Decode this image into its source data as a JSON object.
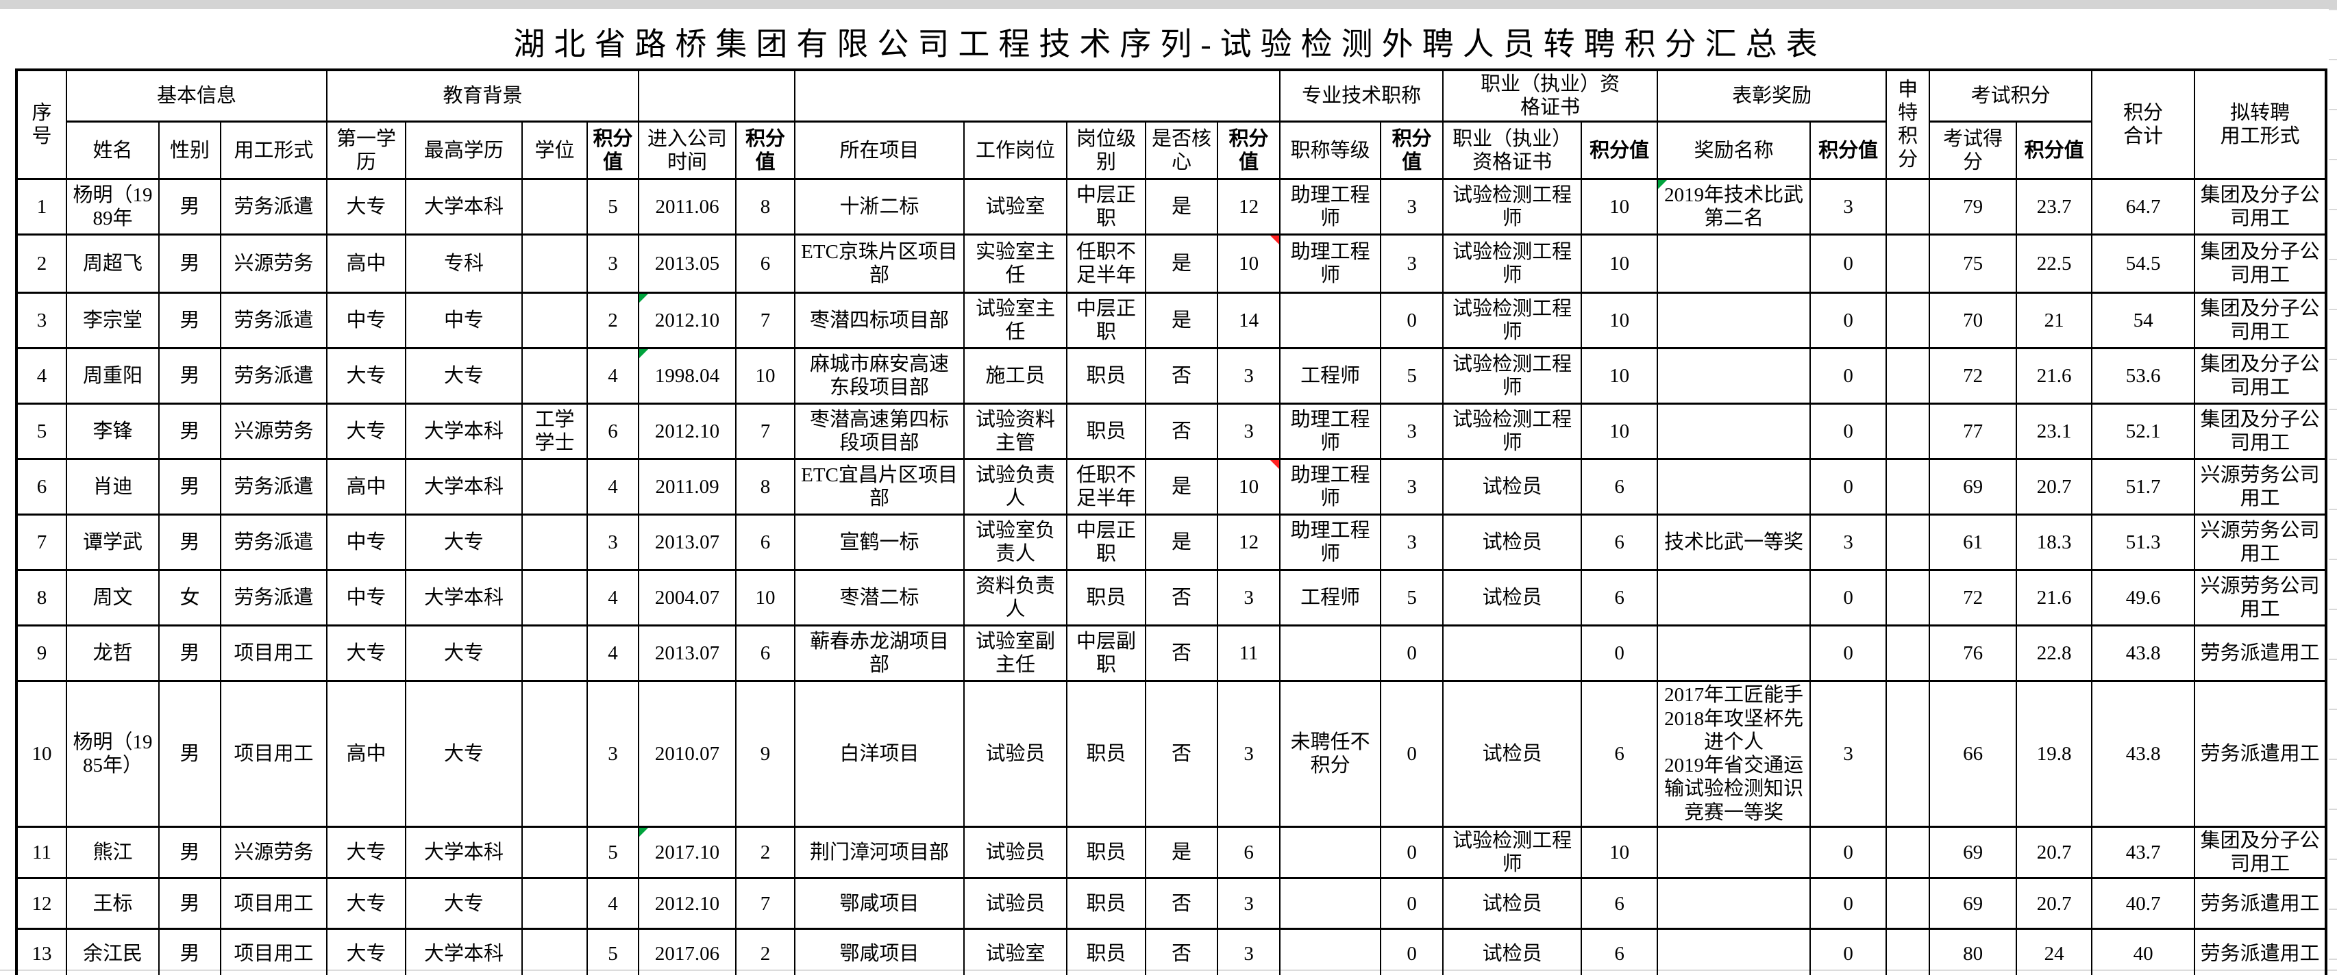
{
  "title": "湖北省路桥集团有限公司工程技术序列-试验检测外聘人员转聘积分汇总表",
  "colors": {
    "comment_green": "#00a33d",
    "comment_red": "#ff2222",
    "top_bar": "#d4d4d4",
    "gridline": "#d9d9d9"
  },
  "header": {
    "index": "序号",
    "groups": {
      "basic": "基本信息",
      "education": "教育背景",
      "entry": "",
      "post": "",
      "pro_title": "专业技术职称",
      "qualification": "职业（执业）资\n格证书",
      "award": "表彰奖励",
      "special": "申特积分",
      "exam": "考试积分",
      "total": "积分\n合计",
      "proposed": "拟转聘\n用工形式"
    },
    "sub": {
      "name": "姓名",
      "gender": "性别",
      "employment": "用工形式",
      "first_degree": "第一学历",
      "highest_degree": "最高学历",
      "degree": "学位",
      "score_edu": "积分值",
      "entry_date": "进入公司时间",
      "score_entry": "积分值",
      "project": "所在项目",
      "post": "工作岗位",
      "post_level": "岗位级别",
      "is_core": "是否核心",
      "score_post": "积分值",
      "title_level": "职称等级",
      "score_title": "积分值",
      "certificate": "职业（执业）资格证书",
      "score_cert": "积分值",
      "award_name": "奖励名称",
      "score_award": "积分值",
      "exam_score": "考试得分",
      "score_exam": "积分值"
    }
  },
  "rows": [
    {
      "cells": [
        "1",
        "杨明（1989年",
        "男",
        "劳务派遣",
        "大专",
        "大学本科",
        "",
        "5",
        "2011.06",
        "8",
        "十淅二标",
        "试验室",
        "中层正职",
        "是",
        "12",
        "助理工程师",
        "3",
        "试验检测工程师",
        "10",
        "2019年技术比武第二名",
        "3",
        "",
        "79",
        "23.7",
        "64.7",
        "集团及分子公司用工"
      ],
      "markers": {
        "19": "green"
      }
    },
    {
      "cells": [
        "2",
        "周超飞",
        "男",
        "兴源劳务",
        "高中",
        "专科",
        "",
        "3",
        "2013.05",
        "6",
        "ETC京珠片区项目部",
        "实验室主任",
        "任职不足半年",
        "是",
        "10",
        "助理工程师",
        "3",
        "试验检测工程师",
        "10",
        "",
        "0",
        "",
        "75",
        "22.5",
        "54.5",
        "集团及分子公司用工"
      ],
      "markers": {
        "14": "red"
      }
    },
    {
      "cells": [
        "3",
        "李宗堂",
        "男",
        "劳务派遣",
        "中专",
        "中专",
        "",
        "2",
        "2012.10",
        "7",
        "枣潜四标项目部",
        "试验室主任",
        "中层正职",
        "是",
        "14",
        "",
        "0",
        "试验检测工程师",
        "10",
        "",
        "0",
        "",
        "70",
        "21",
        "54",
        "集团及分子公司用工"
      ],
      "markers": {
        "8": "green"
      }
    },
    {
      "cells": [
        "4",
        "周重阳",
        "男",
        "劳务派遣",
        "大专",
        "大专",
        "",
        "4",
        "1998.04",
        "10",
        "麻城市麻安高速东段项目部",
        "施工员",
        "职员",
        "否",
        "3",
        "工程师",
        "5",
        "试验检测工程师",
        "10",
        "",
        "0",
        "",
        "72",
        "21.6",
        "53.6",
        "集团及分子公司用工"
      ],
      "markers": {
        "8": "green"
      }
    },
    {
      "cells": [
        "5",
        "李锋",
        "男",
        "兴源劳务",
        "大专",
        "大学本科",
        "工学学士",
        "6",
        "2012.10",
        "7",
        "枣潜高速第四标段项目部",
        "试验资料主管",
        "职员",
        "否",
        "3",
        "助理工程师",
        "3",
        "试验检测工程师",
        "10",
        "",
        "0",
        "",
        "77",
        "23.1",
        "52.1",
        "集团及分子公司用工"
      ],
      "markers": {}
    },
    {
      "cells": [
        "6",
        "肖迪",
        "男",
        "劳务派遣",
        "高中",
        "大学本科",
        "",
        "4",
        "2011.09",
        "8",
        "ETC宜昌片区项目部",
        "试验负责人",
        "任职不足半年",
        "是",
        "10",
        "助理工程师",
        "3",
        "试检员",
        "6",
        "",
        "0",
        "",
        "69",
        "20.7",
        "51.7",
        "兴源劳务公司用工"
      ],
      "markers": {
        "14": "red"
      }
    },
    {
      "cells": [
        "7",
        "谭学武",
        "男",
        "劳务派遣",
        "中专",
        "大专",
        "",
        "3",
        "2013.07",
        "6",
        "宣鹤一标",
        "试验室负责人",
        "中层正职",
        "是",
        "12",
        "助理工程师",
        "3",
        "试检员",
        "6",
        "技术比武一等奖",
        "3",
        "",
        "61",
        "18.3",
        "51.3",
        "兴源劳务公司用工"
      ],
      "markers": {}
    },
    {
      "cells": [
        "8",
        "周文",
        "女",
        "劳务派遣",
        "中专",
        "大学本科",
        "",
        "4",
        "2004.07",
        "10",
        "枣潜二标",
        "资料负责人",
        "职员",
        "否",
        "3",
        "工程师",
        "5",
        "试检员",
        "6",
        "",
        "0",
        "",
        "72",
        "21.6",
        "49.6",
        "兴源劳务公司用工"
      ],
      "markers": {}
    },
    {
      "cells": [
        "9",
        "龙哲",
        "男",
        "项目用工",
        "大专",
        "大专",
        "",
        "4",
        "2013.07",
        "6",
        "蕲春赤龙湖项目部",
        "试验室副主任",
        "中层副职",
        "否",
        "11",
        "",
        "0",
        "",
        "0",
        "",
        "0",
        "",
        "76",
        "22.8",
        "43.8",
        "劳务派遣用工"
      ],
      "markers": {}
    },
    {
      "cells": [
        "10",
        "杨明（1985年）",
        "男",
        "项目用工",
        "高中",
        "大专",
        "",
        "3",
        "2010.07",
        "9",
        "白洋项目",
        "试验员",
        "职员",
        "否",
        "3",
        "未聘任不积分",
        "0",
        "试检员",
        "6",
        "2017年工匠能手\n2018年攻坚杯先进个人\n2019年省交通运输试验检测知识竞赛一等奖",
        "3",
        "",
        "66",
        "19.8",
        "43.8",
        "劳务派遣用工"
      ],
      "markers": {}
    },
    {
      "cells": [
        "11",
        "熊江",
        "男",
        "兴源劳务",
        "大专",
        "大学本科",
        "",
        "5",
        "2017.10",
        "2",
        "荆门漳河项目部",
        "试验员",
        "职员",
        "是",
        "6",
        "",
        "0",
        "试验检测工程师",
        "10",
        "",
        "0",
        "",
        "69",
        "20.7",
        "43.7",
        "集团及分子公司用工"
      ],
      "markers": {
        "8": "green"
      }
    },
    {
      "cells": [
        "12",
        "王标",
        "男",
        "项目用工",
        "大专",
        "大专",
        "",
        "4",
        "2012.10",
        "7",
        "鄂咸项目",
        "试验员",
        "职员",
        "否",
        "3",
        "",
        "0",
        "试检员",
        "6",
        "",
        "0",
        "",
        "69",
        "20.7",
        "40.7",
        "劳务派遣用工"
      ],
      "markers": {}
    },
    {
      "cells": [
        "13",
        "余江民",
        "男",
        "项目用工",
        "大专",
        "大学本科",
        "",
        "5",
        "2017.06",
        "2",
        "鄂咸项目",
        "试验室",
        "职员",
        "否",
        "3",
        "",
        "0",
        "试检员",
        "6",
        "",
        "0",
        "",
        "80",
        "24",
        "40",
        "劳务派遣用工"
      ],
      "markers": {}
    }
  ]
}
